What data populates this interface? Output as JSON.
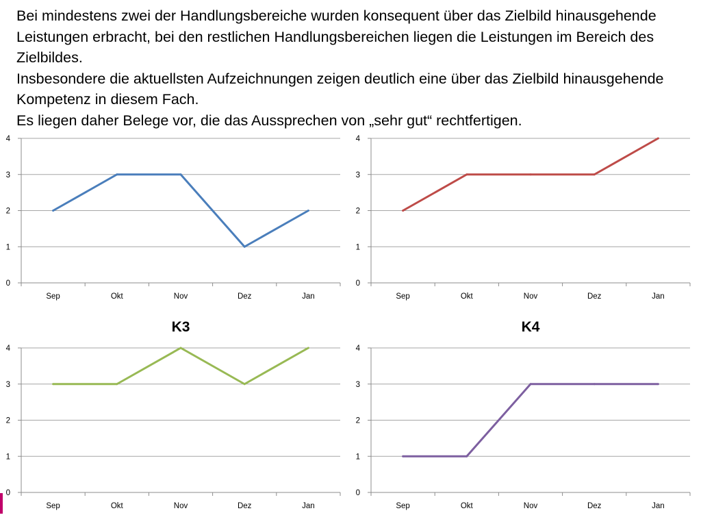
{
  "intro": {
    "line1": "Bei mindestens zwei der Handlungsbereiche wurden konsequent über das Zielbild hinausgehende Leistungen erbracht, bei den restlichen Handlungsbereichen liegen die Leistungen im Bereich des Zielbildes.",
    "line2": "Insbesondere die aktuellsten Aufzeichnungen zeigen deutlich eine über das Zielbild hinausgehende Kompetenz in diesem Fach.",
    "line3": "Es liegen daher Belege vor, die das Aussprechen von „sehr gut“ rechtfertigen."
  },
  "colors": {
    "gridline": "#a6a6a6",
    "axis": "#8c8c8c",
    "accent": "#c0006a"
  },
  "chart_data": [
    {
      "type": "line",
      "title": "",
      "categories": [
        "Sep",
        "Okt",
        "Nov",
        "Dez",
        "Jan"
      ],
      "series": [
        {
          "values": [
            2,
            3,
            3,
            1,
            2
          ],
          "color": "#4a7ebb"
        }
      ],
      "ylim": [
        0,
        4
      ],
      "yticks": [
        "0",
        "1",
        "2",
        "3",
        "4"
      ],
      "grid": true,
      "legend": "none"
    },
    {
      "type": "line",
      "title": "",
      "categories": [
        "Sep",
        "Okt",
        "Nov",
        "Dez",
        "Jan"
      ],
      "series": [
        {
          "values": [
            2,
            3,
            3,
            3,
            4
          ],
          "color": "#be4b48"
        }
      ],
      "ylim": [
        0,
        4
      ],
      "yticks": [
        "0",
        "1",
        "2",
        "3",
        "4"
      ],
      "grid": true,
      "legend": "none"
    },
    {
      "type": "line",
      "title": "K3",
      "categories": [
        "Sep",
        "Okt",
        "Nov",
        "Dez",
        "Jan"
      ],
      "series": [
        {
          "values": [
            3,
            3,
            4,
            3,
            4
          ],
          "color": "#98b954"
        }
      ],
      "ylim": [
        0,
        4
      ],
      "yticks": [
        "0",
        "1",
        "2",
        "3",
        "4"
      ],
      "grid": true,
      "legend": "none"
    },
    {
      "type": "line",
      "title": "K4",
      "categories": [
        "Sep",
        "Okt",
        "Nov",
        "Dez",
        "Jan"
      ],
      "series": [
        {
          "values": [
            1,
            1,
            3,
            3,
            3
          ],
          "color": "#7d5fa0"
        }
      ],
      "ylim": [
        0,
        4
      ],
      "yticks": [
        "0",
        "1",
        "2",
        "3",
        "4"
      ],
      "grid": true,
      "legend": "none"
    }
  ]
}
